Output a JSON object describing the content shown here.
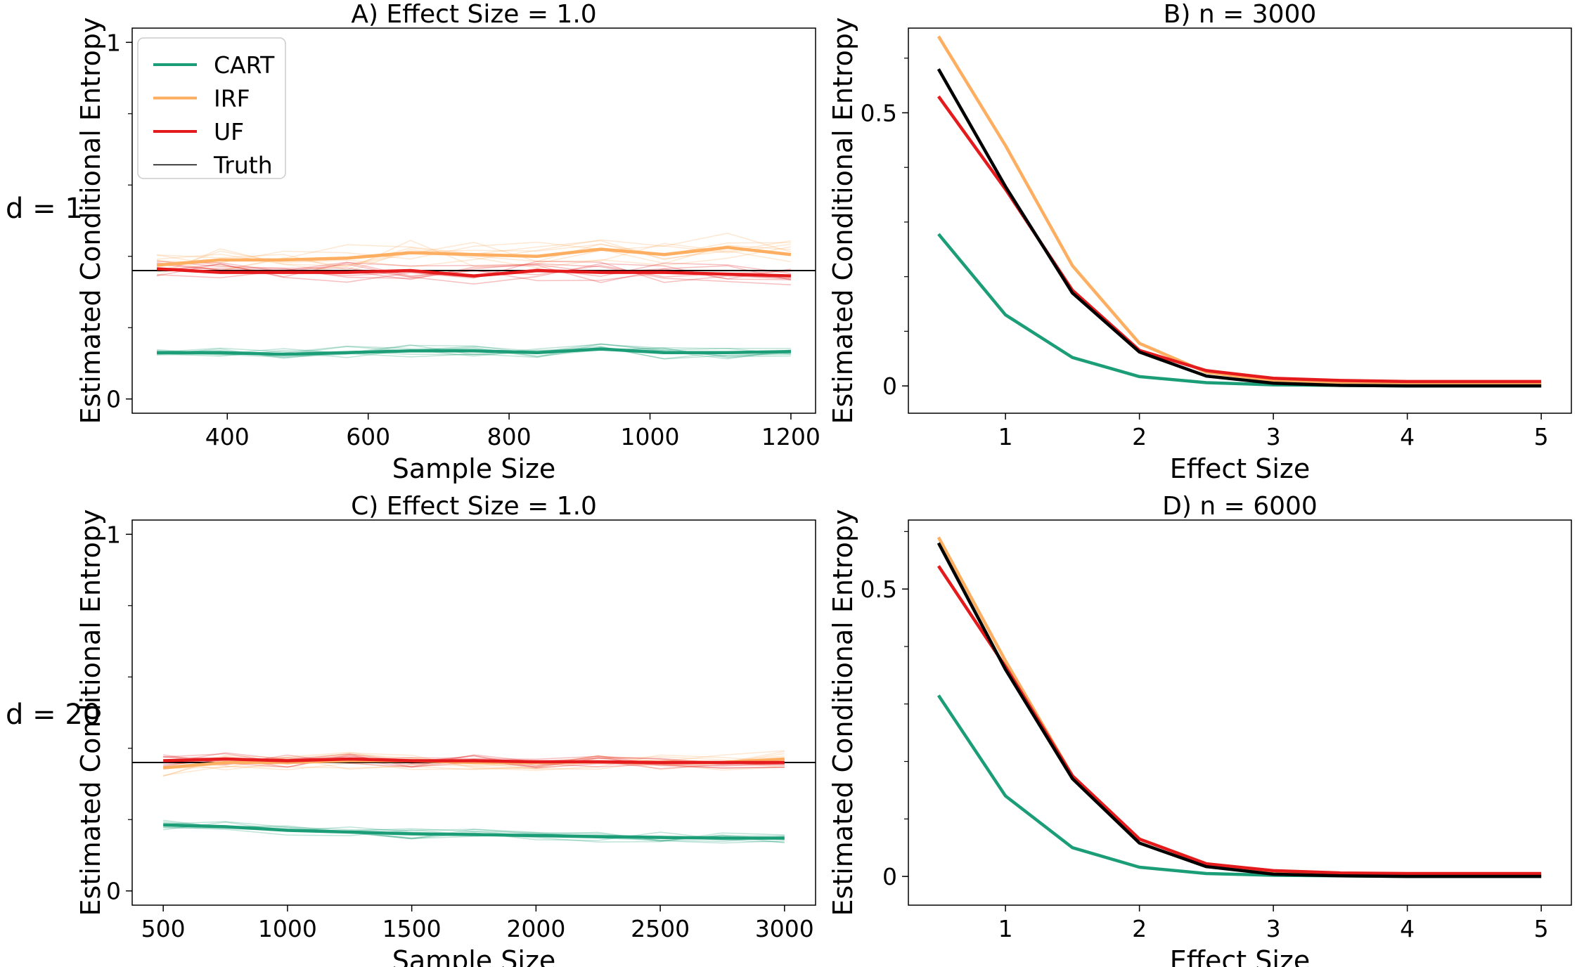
{
  "row_labels": [
    "d = 1",
    "d = 20"
  ],
  "colors": {
    "CART": "#1b9e77",
    "IRF": "#fdae61",
    "UF": "#e41a1c",
    "Truth": "#000000"
  },
  "legend": [
    {
      "name": "CART",
      "color": "#1b9e77",
      "width": 4
    },
    {
      "name": "IRF",
      "color": "#fdae61",
      "width": 4
    },
    {
      "name": "UF",
      "color": "#e41a1c",
      "width": 4
    },
    {
      "name": "Truth",
      "color": "#000000",
      "width": 1.5
    }
  ],
  "chart_data": [
    {
      "type": "line",
      "title": "A) Effect Size = 1.0",
      "xlabel": "Sample Size",
      "ylabel": "Estimated Conditional Entropy",
      "xlim": [
        265,
        1235
      ],
      "ylim": [
        -0.04,
        1.04
      ],
      "xticks": [
        400,
        600,
        800,
        1000,
        1200
      ],
      "yticks": [
        0,
        1
      ],
      "grid": false,
      "legend_position": "upper-left",
      "truth": 0.36,
      "x": [
        300,
        390,
        480,
        570,
        660,
        750,
        840,
        930,
        1020,
        1110,
        1200
      ],
      "series": [
        {
          "name": "CART",
          "values": [
            0.13,
            0.13,
            0.125,
            0.13,
            0.135,
            0.135,
            0.13,
            0.14,
            0.13,
            0.13,
            0.133
          ],
          "spread": 0.018
        },
        {
          "name": "IRF",
          "values": [
            0.375,
            0.39,
            0.39,
            0.395,
            0.41,
            0.405,
            0.4,
            0.42,
            0.405,
            0.425,
            0.405
          ],
          "spread": 0.04
        },
        {
          "name": "UF",
          "values": [
            0.365,
            0.355,
            0.355,
            0.355,
            0.36,
            0.345,
            0.36,
            0.355,
            0.355,
            0.35,
            0.345
          ],
          "spread": 0.03
        }
      ]
    },
    {
      "type": "line",
      "title": "B) n = 3000",
      "xlabel": "Effect Size",
      "ylabel": "Estimated Conditional Entropy",
      "xlim": [
        0.275,
        5.225
      ],
      "ylim": [
        -0.05,
        0.655
      ],
      "xticks": [
        1,
        2,
        3,
        4,
        5
      ],
      "yticks": [
        0,
        0.5
      ],
      "ytick_labels": [
        "0",
        "0.5"
      ],
      "grid": false,
      "x": [
        0.5,
        1.0,
        1.5,
        2.0,
        2.5,
        3.0,
        3.5,
        4.0,
        4.5,
        5.0
      ],
      "series": [
        {
          "name": "CART",
          "values": [
            0.278,
            0.13,
            0.052,
            0.017,
            0.006,
            0.002,
            0.001,
            0.0,
            0.0,
            0.0
          ]
        },
        {
          "name": "IRF",
          "values": [
            0.64,
            0.44,
            0.22,
            0.078,
            0.025,
            0.01,
            0.005,
            0.004,
            0.003,
            0.003
          ]
        },
        {
          "name": "UF",
          "values": [
            0.53,
            0.36,
            0.175,
            0.065,
            0.028,
            0.014,
            0.01,
            0.008,
            0.008,
            0.008
          ]
        },
        {
          "name": "Truth",
          "values": [
            0.58,
            0.365,
            0.17,
            0.062,
            0.018,
            0.005,
            0.001,
            0.0,
            0.0,
            0.0
          ]
        }
      ]
    },
    {
      "type": "line",
      "title": "C) Effect Size = 1.0",
      "xlabel": "Sample Size",
      "ylabel": "Estimated Conditional Entropy",
      "xlim": [
        375,
        3125
      ],
      "ylim": [
        -0.04,
        1.04
      ],
      "xticks": [
        500,
        1000,
        1500,
        2000,
        2500,
        3000
      ],
      "yticks": [
        0,
        1
      ],
      "grid": false,
      "truth": 0.36,
      "x": [
        500,
        750,
        1000,
        1250,
        1500,
        1750,
        2000,
        2250,
        2500,
        2750,
        3000
      ],
      "series": [
        {
          "name": "CART",
          "values": [
            0.185,
            0.18,
            0.17,
            0.165,
            0.16,
            0.158,
            0.155,
            0.152,
            0.15,
            0.148,
            0.148
          ],
          "spread": 0.015
        },
        {
          "name": "IRF",
          "values": [
            0.345,
            0.36,
            0.36,
            0.365,
            0.365,
            0.36,
            0.36,
            0.362,
            0.36,
            0.36,
            0.37
          ],
          "spread": 0.025
        },
        {
          "name": "UF",
          "values": [
            0.365,
            0.37,
            0.365,
            0.37,
            0.365,
            0.365,
            0.362,
            0.362,
            0.36,
            0.36,
            0.36
          ],
          "spread": 0.018
        }
      ]
    },
    {
      "type": "line",
      "title": "D) n = 6000",
      "xlabel": "Effect Size",
      "ylabel": "Estimated Conditional Entropy",
      "xlim": [
        0.275,
        5.225
      ],
      "ylim": [
        -0.05,
        0.62
      ],
      "xticks": [
        1,
        2,
        3,
        4,
        5
      ],
      "yticks": [
        0,
        0.5
      ],
      "ytick_labels": [
        "0",
        "0.5"
      ],
      "grid": false,
      "x": [
        0.5,
        1.0,
        1.5,
        2.0,
        2.5,
        3.0,
        3.5,
        4.0,
        4.5,
        5.0
      ],
      "series": [
        {
          "name": "CART",
          "values": [
            0.315,
            0.14,
            0.05,
            0.016,
            0.005,
            0.002,
            0.001,
            0.0,
            0.0,
            0.0
          ]
        },
        {
          "name": "IRF",
          "values": [
            0.59,
            0.375,
            0.175,
            0.065,
            0.022,
            0.008,
            0.004,
            0.003,
            0.003,
            0.003
          ]
        },
        {
          "name": "UF",
          "values": [
            0.54,
            0.365,
            0.175,
            0.065,
            0.022,
            0.01,
            0.006,
            0.005,
            0.005,
            0.005
          ]
        },
        {
          "name": "Truth",
          "values": [
            0.58,
            0.36,
            0.17,
            0.058,
            0.017,
            0.004,
            0.001,
            0.0,
            0.0,
            0.0
          ]
        }
      ]
    }
  ]
}
